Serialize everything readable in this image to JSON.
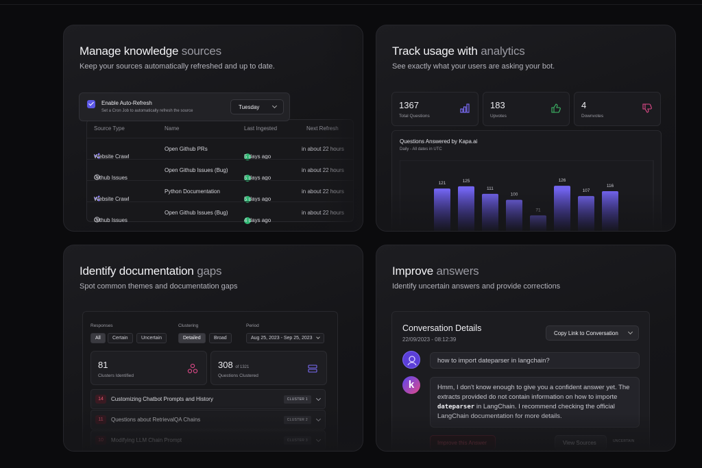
{
  "card1": {
    "title_main": "Manage knowledge",
    "title_dim": "sources",
    "subtitle": "Keep your sources automatically refreshed and up to date.",
    "autorefresh": {
      "label": "Enable Auto-Refresh",
      "sublabel": "Set a Cron Job to automatically refresh the source",
      "day": "Tuesday"
    },
    "columns": [
      "Source Type",
      "Name",
      "Last Ingested",
      "Next Refresh"
    ],
    "rows": [
      {
        "type": "Website Crawl",
        "name": "Open Github PRs",
        "ingested": "5 days ago",
        "next": "in about 22 hours",
        "icon": "crawl-icon"
      },
      {
        "type": "Github Issues",
        "name": "Open Github Issues (Bug)",
        "ingested": "5 days ago",
        "next": "in about 22 hours",
        "icon": "github-icon"
      },
      {
        "type": "Website Crawl",
        "name": "Python Documentation",
        "ingested": "5 days ago",
        "next": "in about 22 hours",
        "icon": "crawl-icon"
      },
      {
        "type": "Github Issues",
        "name": "Open Github Issues (Bug)",
        "ingested": "4 days ago",
        "next": "in about 22 hours",
        "icon": "github-icon"
      }
    ]
  },
  "card2": {
    "title_main": "Track usage with",
    "title_dim": "analytics",
    "subtitle": "See exactly what your users are asking your bot.",
    "stats": [
      {
        "value": "1367",
        "label": "Total Questions",
        "icon": "bar-chart-icon",
        "color": "#7b6cf6"
      },
      {
        "value": "183",
        "label": "Upvotes",
        "icon": "thumbs-up-icon",
        "color": "#3fbf6a"
      },
      {
        "value": "4",
        "label": "Downvotes",
        "icon": "thumbs-down-icon",
        "color": "#e04a8a"
      }
    ],
    "chart_title": "Questions Answered by Kapa.ai",
    "chart_subtitle": "Daily - All dates in UTC"
  },
  "chart_data": {
    "type": "bar",
    "title": "Questions Answered by Kapa.ai",
    "subtitle": "Daily - All dates in UTC",
    "values": [
      121,
      125,
      111,
      100,
      71,
      126,
      107,
      116
    ],
    "ylim": [
      0,
      160
    ],
    "color": "#6b5ee8"
  },
  "card3": {
    "title_main": "Identify",
    "title_mid": "documentation",
    "title_dim": "gaps",
    "subtitle": "Spot common themes and documentation gaps",
    "responses_label": "Responses",
    "responses": [
      "All",
      "Certain",
      "Uncertain"
    ],
    "clustering_label": "Clustering",
    "clustering": [
      "Detailed",
      "Broad"
    ],
    "period_label": "Period",
    "period": "Aug 25, 2023 - Sep 25, 2023",
    "clusters_value": "81",
    "clusters_label": "Clusters Identified",
    "questions_value": "308",
    "questions_of": "of 1321",
    "questions_label": "Questions Clustered",
    "clusters": [
      {
        "n": "14",
        "title": "Customizing Chatbot Prompts and History",
        "tag": "CLUSTER 1"
      },
      {
        "n": "11",
        "title": "Questions about RetrievalQA Chains",
        "tag": "CLUSTER 2"
      },
      {
        "n": "10",
        "title": "Modifying LLM Chain Prompt",
        "tag": "CLUSTER 3"
      }
    ]
  },
  "card4": {
    "title_main": "Improve",
    "title_dim": "answers",
    "subtitle": "Identify uncertain answers and provide corrections",
    "details_title": "Conversation Details",
    "details_date": "22/09/2023 - 08:12:39",
    "copy_button": "Copy Link to Conversation",
    "question": "how to import dateparser in langchain?",
    "answer_1": "Hmm, I don't know enough to give you a confident answer yet. The extracts provided do not contain information on how to importe ",
    "answer_code": "dateparser",
    "answer_2": " in LangChain. I recommend checking the official LangChain documentation for more details.",
    "improve_button": "Improve this Answer",
    "sources_button": "View Sources",
    "uncertain_tag": "UNCERTAIN",
    "bot_letter": "k"
  }
}
